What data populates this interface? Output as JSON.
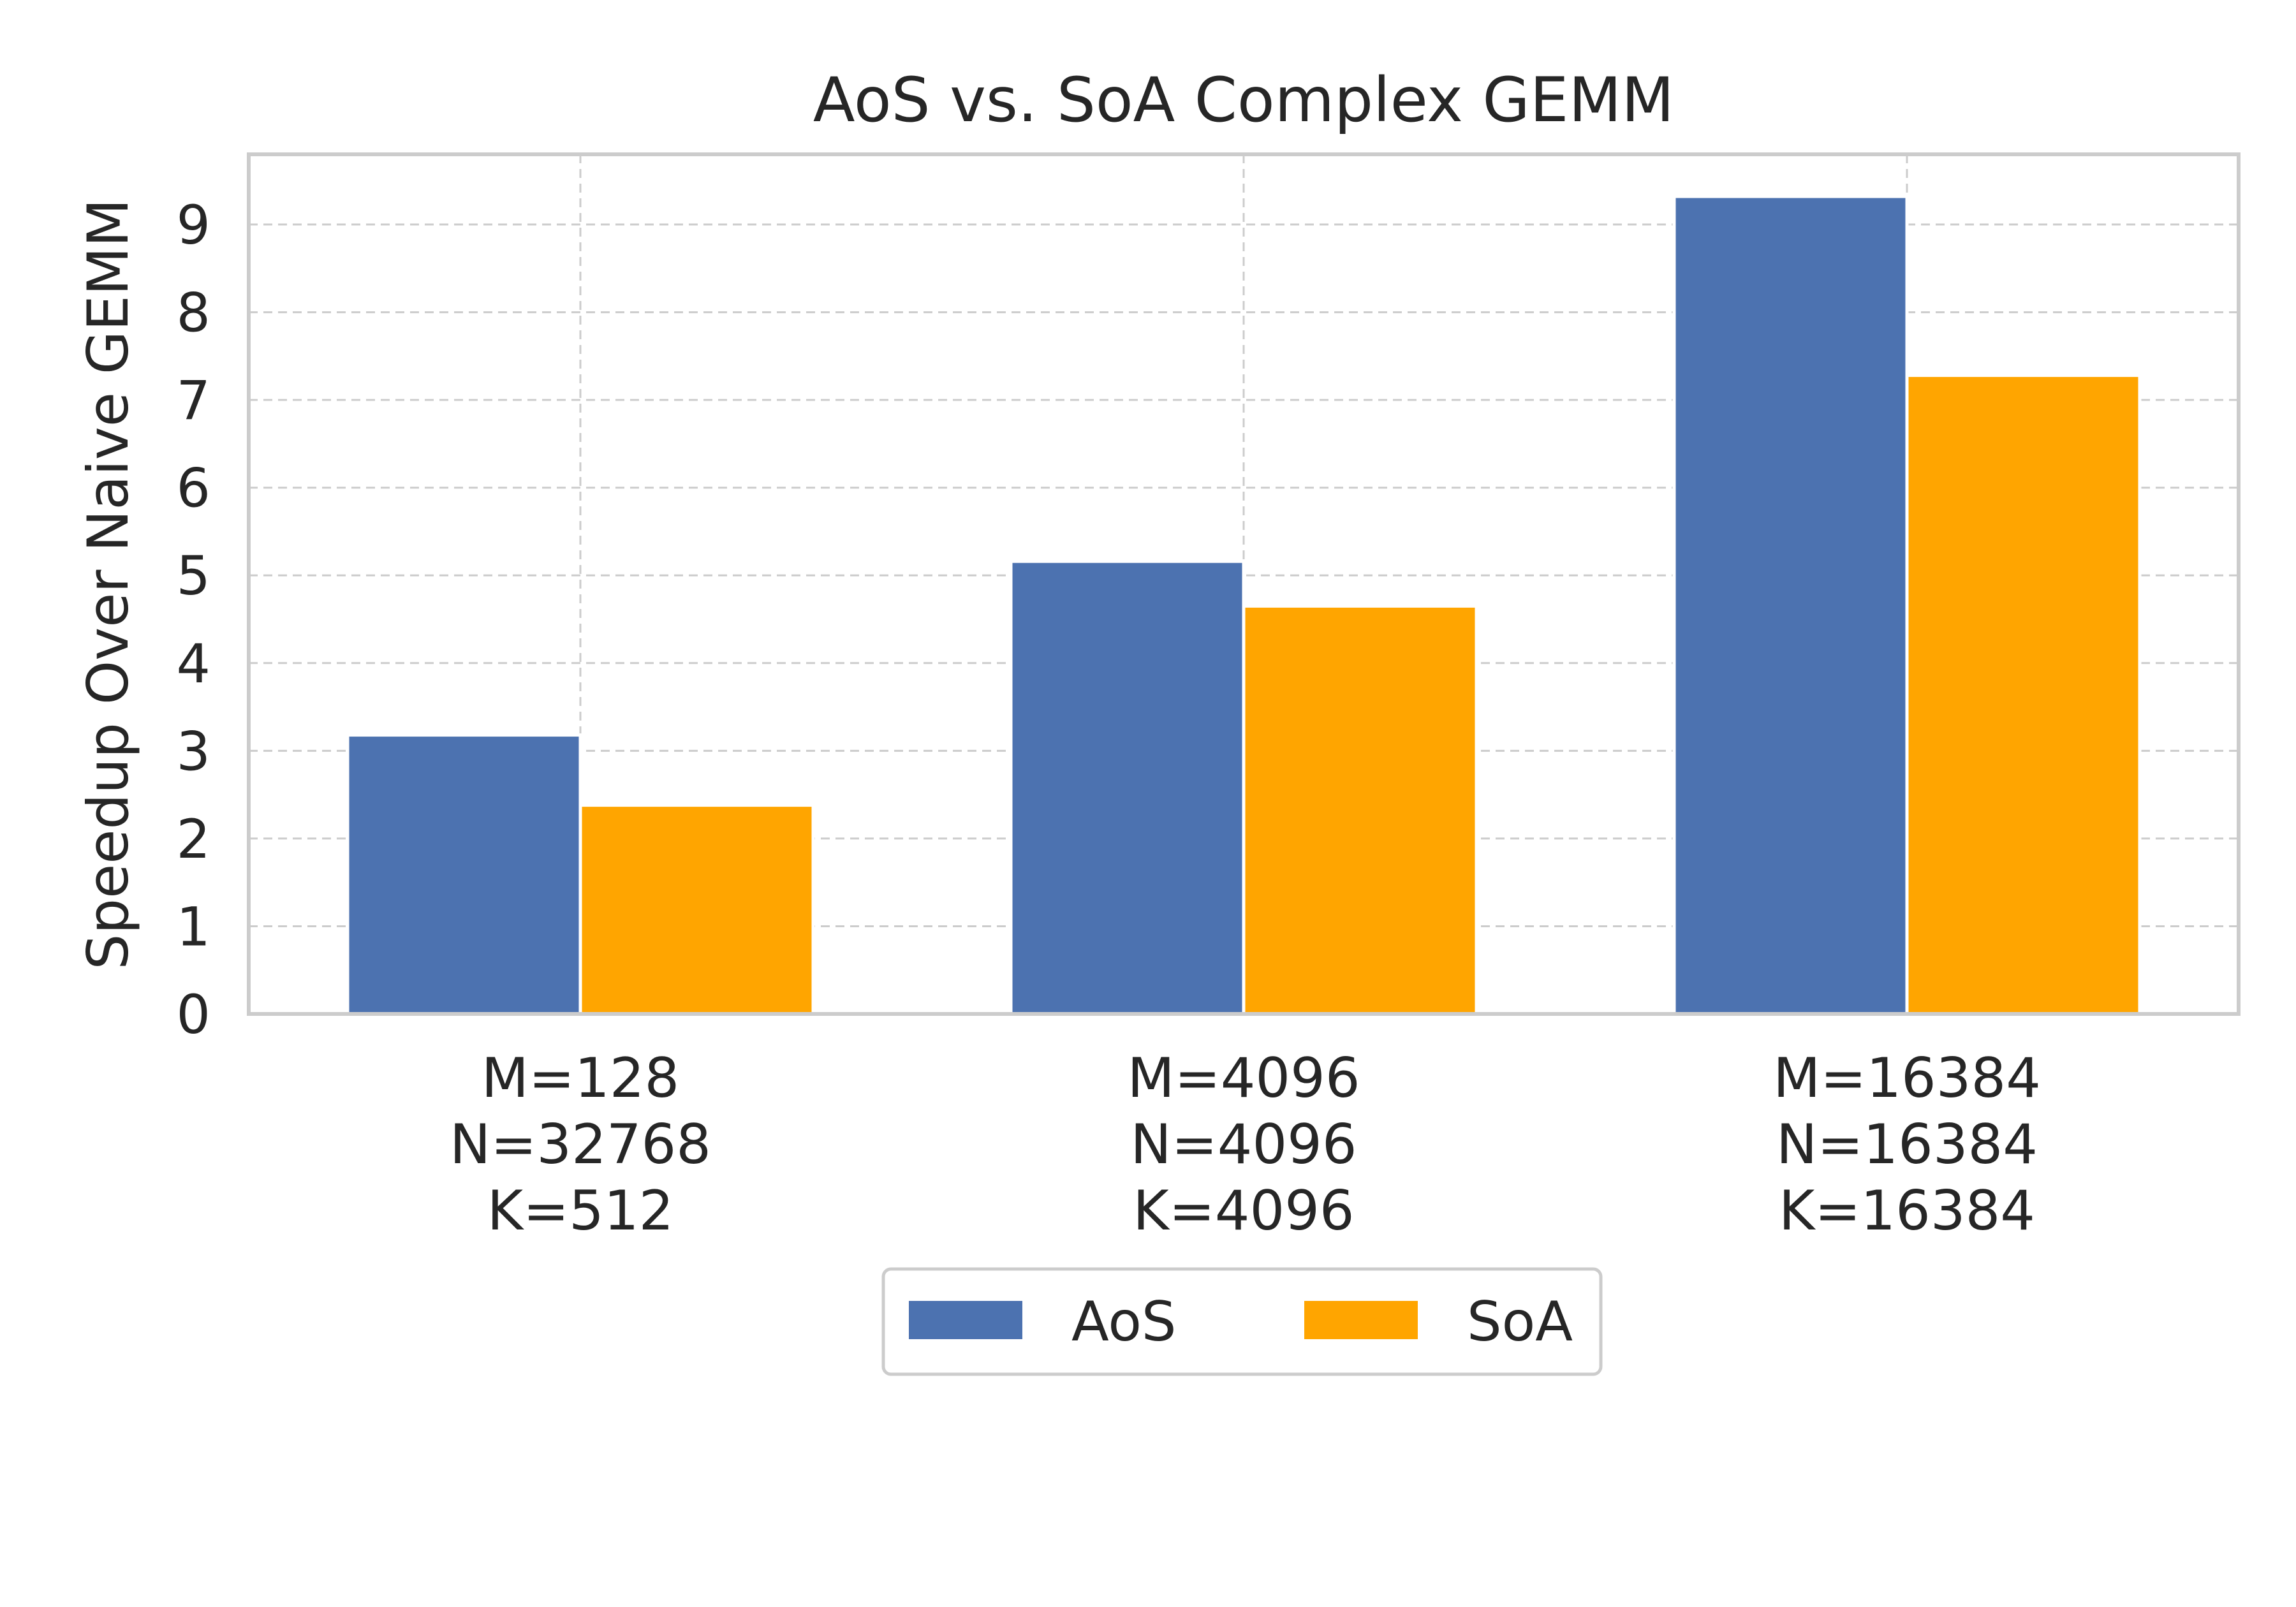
{
  "chart_data": {
    "type": "bar",
    "title": "AoS vs. SoA Complex GEMM",
    "xlabel": "",
    "ylabel": "Speedup Over Naive GEMM",
    "ylim": [
      0,
      9.8
    ],
    "yticks": [
      "0",
      "1",
      "2",
      "3",
      "4",
      "5",
      "6",
      "7",
      "8",
      "9"
    ],
    "grid": true,
    "legend_position": "below",
    "categories": [
      [
        "M=128",
        "N=32768",
        "K=512"
      ],
      [
        "M=4096",
        "N=4096",
        "K=4096"
      ],
      [
        "M=16384",
        "N=16384",
        "K=16384"
      ]
    ],
    "series": [
      {
        "name": "AoS",
        "color": "#4c72b0",
        "values": [
          3.18,
          5.16,
          9.32
        ]
      },
      {
        "name": "SoA",
        "color": "#ffa500",
        "values": [
          2.38,
          4.65,
          7.28
        ]
      }
    ]
  }
}
